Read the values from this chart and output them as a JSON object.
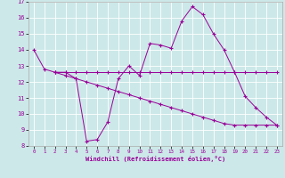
{
  "xlabel": "Windchill (Refroidissement éolien,°C)",
  "background_color": "#cce8e8",
  "line_color": "#990099",
  "grid_color": "#ffffff",
  "xlim": [
    -0.5,
    23.5
  ],
  "ylim": [
    8,
    17
  ],
  "yticks": [
    8,
    9,
    10,
    11,
    12,
    13,
    14,
    15,
    16,
    17
  ],
  "xticks": [
    0,
    1,
    2,
    3,
    4,
    5,
    6,
    7,
    8,
    9,
    10,
    11,
    12,
    13,
    14,
    15,
    16,
    17,
    18,
    19,
    20,
    21,
    22,
    23
  ],
  "series1_x": [
    0,
    1,
    2,
    3,
    4,
    5,
    6,
    7,
    8,
    9,
    10,
    11,
    12,
    13,
    14,
    15,
    16,
    17,
    18,
    19,
    20,
    21,
    22,
    23
  ],
  "series1_y": [
    14.0,
    12.8,
    12.6,
    12.6,
    12.2,
    8.3,
    8.4,
    9.5,
    12.2,
    13.0,
    12.4,
    14.4,
    14.3,
    14.1,
    15.8,
    16.7,
    16.2,
    15.0,
    14.0,
    12.6,
    11.1,
    10.4,
    9.8,
    9.3
  ],
  "series2_x": [
    2,
    3,
    4,
    5,
    6,
    7,
    8,
    9,
    10,
    11,
    12,
    13,
    14,
    15,
    16,
    17,
    18,
    19,
    20,
    21,
    22,
    23
  ],
  "series2_y": [
    12.6,
    12.6,
    12.6,
    12.6,
    12.6,
    12.6,
    12.6,
    12.6,
    12.6,
    12.6,
    12.6,
    12.6,
    12.6,
    12.6,
    12.6,
    12.6,
    12.6,
    12.6,
    12.6,
    12.6,
    12.6,
    12.6
  ],
  "series3_x": [
    2,
    3,
    4,
    5,
    6,
    7,
    8,
    9,
    10,
    11,
    12,
    13,
    14,
    15,
    16,
    17,
    18,
    19,
    20,
    21,
    22,
    23
  ],
  "series3_y": [
    12.6,
    12.4,
    12.2,
    12.0,
    11.8,
    11.6,
    11.4,
    11.2,
    11.0,
    10.8,
    10.6,
    10.4,
    10.2,
    10.0,
    9.8,
    9.6,
    9.4,
    9.3,
    9.3,
    9.3,
    9.3,
    9.3
  ]
}
